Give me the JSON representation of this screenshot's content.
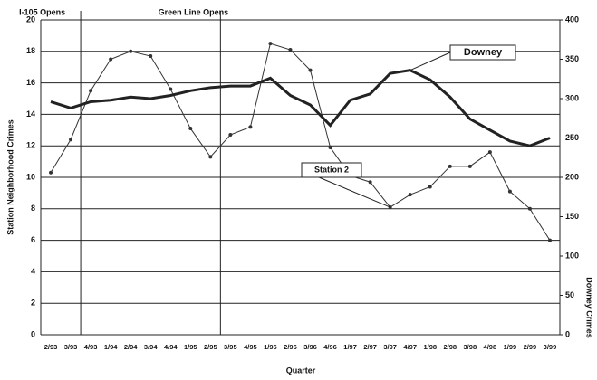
{
  "chart_data": {
    "type": "line",
    "categories": [
      "2/93",
      "3/93",
      "4/93",
      "1/94",
      "2/94",
      "3/94",
      "4/94",
      "1/95",
      "2/95",
      "3/95",
      "4/95",
      "1/96",
      "2/96",
      "3/96",
      "4/96",
      "1/97",
      "2/97",
      "3/97",
      "4/97",
      "1/98",
      "2/98",
      "3/98",
      "4/98",
      "1/99",
      "2/99",
      "3/99"
    ],
    "series": [
      {
        "name": "Station 2",
        "color": "#333333",
        "values": [
          10.3,
          12.4,
          15.5,
          17.5,
          18,
          17.7,
          15.6,
          13.1,
          11.3,
          12.7,
          13.2,
          18.5,
          18.1,
          16.8,
          11.9,
          10.1,
          9.7,
          8.1,
          8.9,
          9.4,
          10.7,
          10.7,
          11.6,
          9.1,
          8.0,
          6.0
        ]
      },
      {
        "name": "Downey",
        "color": "#222222",
        "axis": "y2",
        "values": [
          296,
          288,
          296,
          298,
          302,
          300,
          304,
          310,
          314,
          316,
          316,
          326,
          304,
          292,
          266,
          298,
          306,
          332,
          336,
          324,
          302,
          274,
          260,
          246,
          240,
          250
        ]
      }
    ],
    "ylim": [
      0,
      20
    ],
    "yticks": [
      0,
      2,
      4,
      6,
      8,
      10,
      12,
      14,
      16,
      18,
      20
    ],
    "y2lim": [
      0,
      400
    ],
    "y2ticks": [
      0,
      50,
      100,
      150,
      200,
      250,
      300,
      350,
      400
    ],
    "ylabel": "Station Neighborhood Crimes",
    "y2label": "Downey Crimes",
    "xlabel": "Quarter",
    "grid": true,
    "annotations": [
      {
        "text": "I-105 Opens",
        "x": "4/93"
      },
      {
        "text": "Green Line Opens",
        "x": "3/95"
      }
    ]
  }
}
